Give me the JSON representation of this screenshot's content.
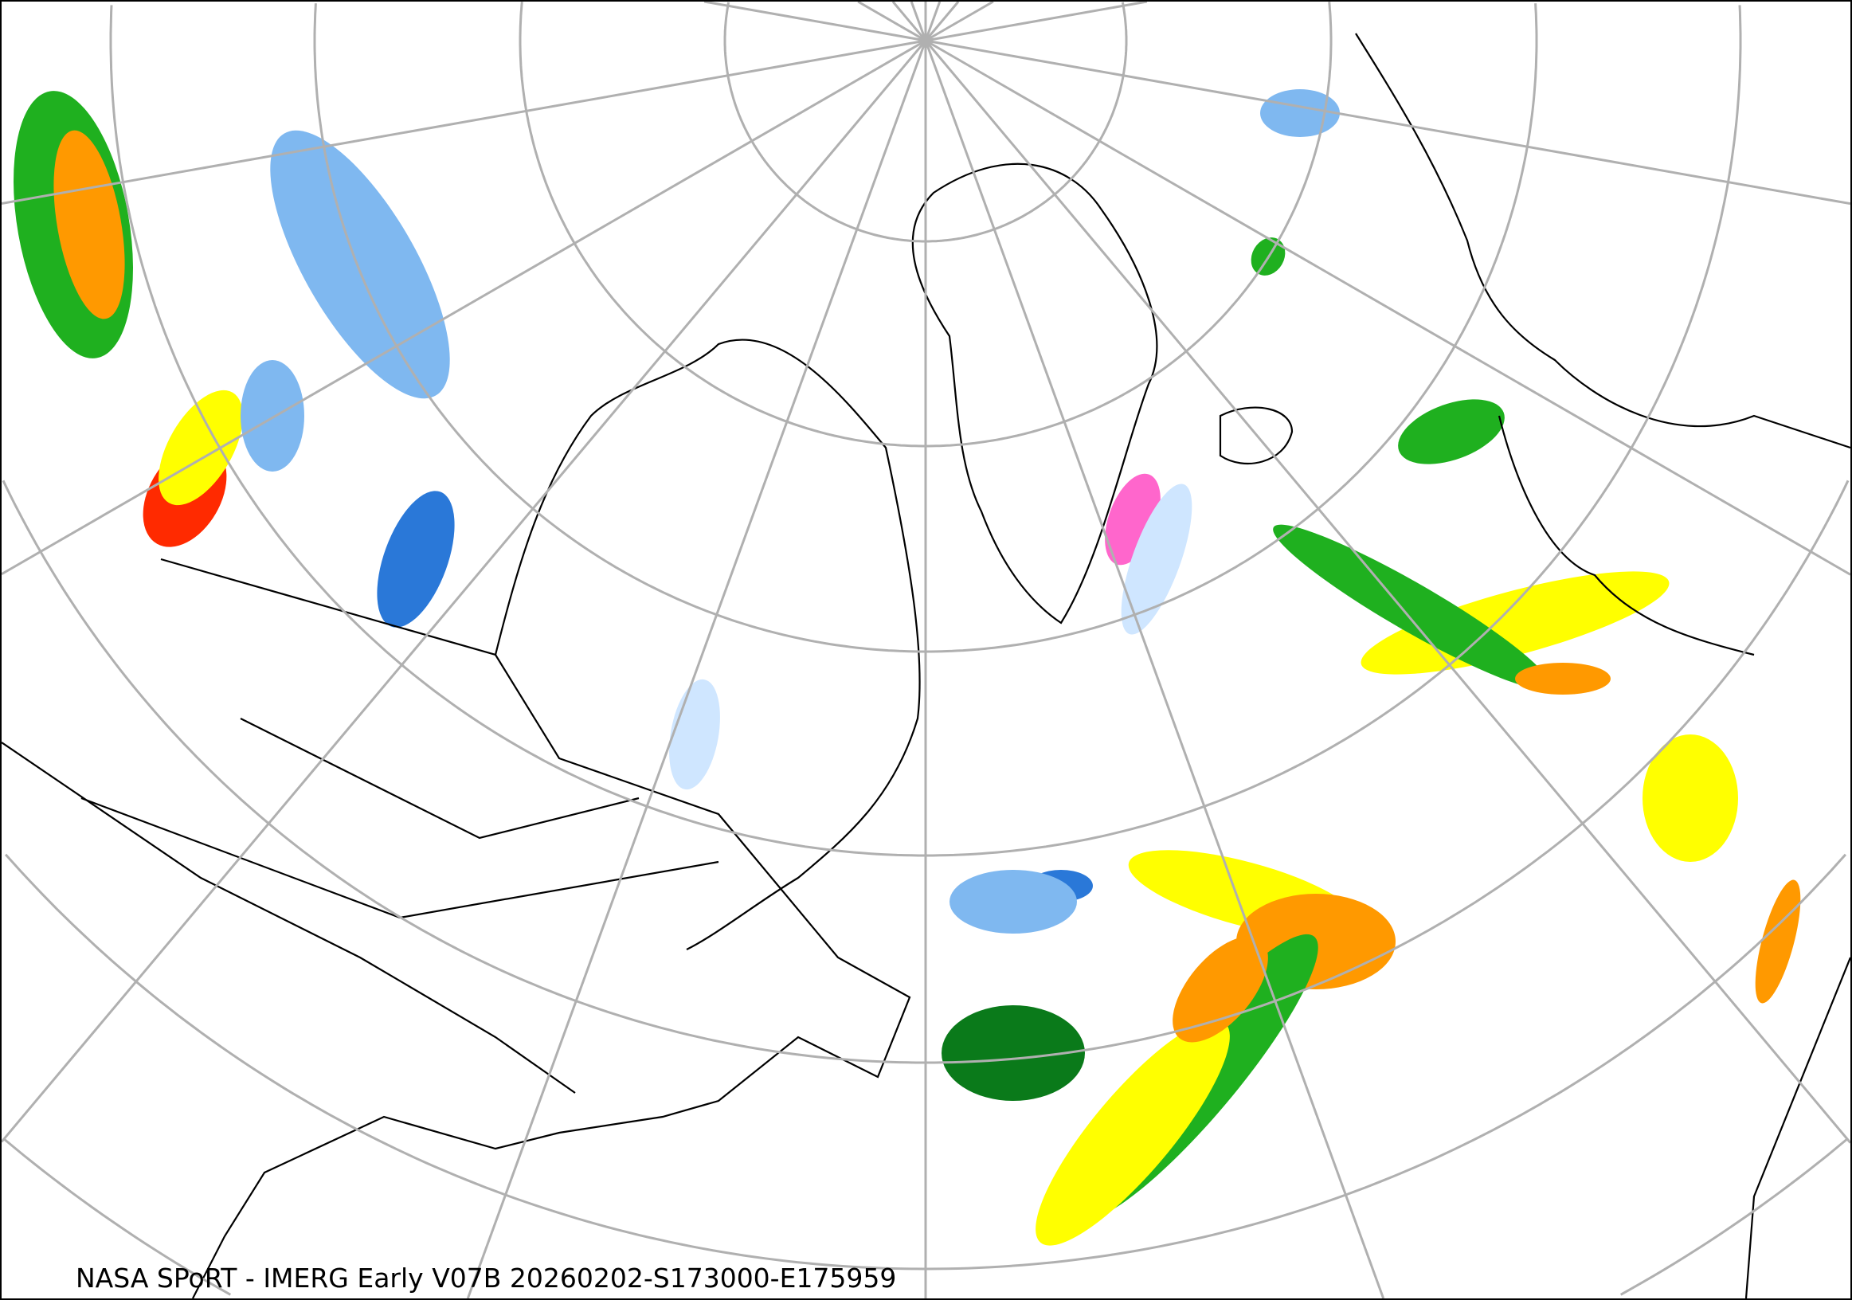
{
  "caption": "NASA SPoRT - IMERG Early V07B 20260202-S173000-E175959",
  "map": {
    "projection": "north-polar",
    "graticule_color": "#b0b0b0",
    "boundary_color": "#000000",
    "precip_colors": {
      "light_snow": "#cfe6ff",
      "snow": "#7fb8f0",
      "heavy_snow": "#2a78d8",
      "very_heavy_snow": "#1a4fa8",
      "mixed": "#ff66cc",
      "light_rain": "#7fe000",
      "rain": "#1fb01f",
      "dark_rain": "#0a7a1a",
      "moderate_rain": "#ffff00",
      "heavy_rain": "#ff9900",
      "very_heavy_rain": "#ff2a00"
    }
  }
}
